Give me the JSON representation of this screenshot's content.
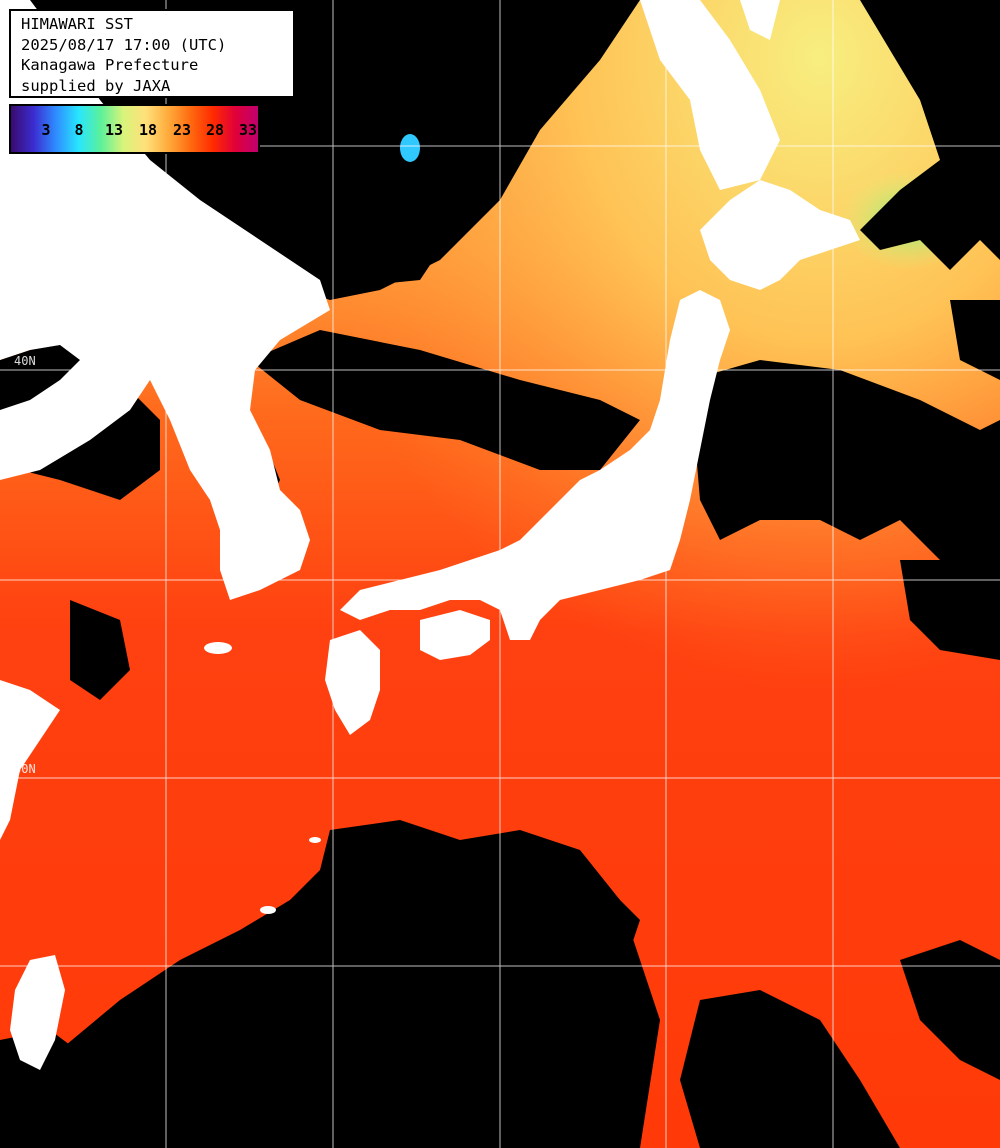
{
  "header": {
    "line1": "HIMAWARI SST",
    "line2": "2025/08/17 17:00 (UTC)",
    "line3": "Kanagawa Prefecture",
    "line4": "supplied by JAXA"
  },
  "legend": {
    "ticks": [
      "3",
      "8",
      "13",
      "18",
      "23",
      "28",
      "33"
    ],
    "stops": [
      "#3a0a6e",
      "#3b2cd0",
      "#2f8cff",
      "#27e6ff",
      "#5cf09a",
      "#d8f47a",
      "#ffe07a",
      "#ffab3c",
      "#ff6a10",
      "#ff2a00",
      "#e0003a",
      "#c0006e"
    ]
  },
  "grid": {
    "lat_labels": [
      "40N",
      "30N"
    ]
  },
  "colors": {
    "land": "#ffffff",
    "cloud_or_nodata": "#000000",
    "sst_warm": "#ff4a10",
    "sst_mid": "#ff8a30",
    "sst_cool": "#f6e37a",
    "grid": "#ffffff"
  }
}
